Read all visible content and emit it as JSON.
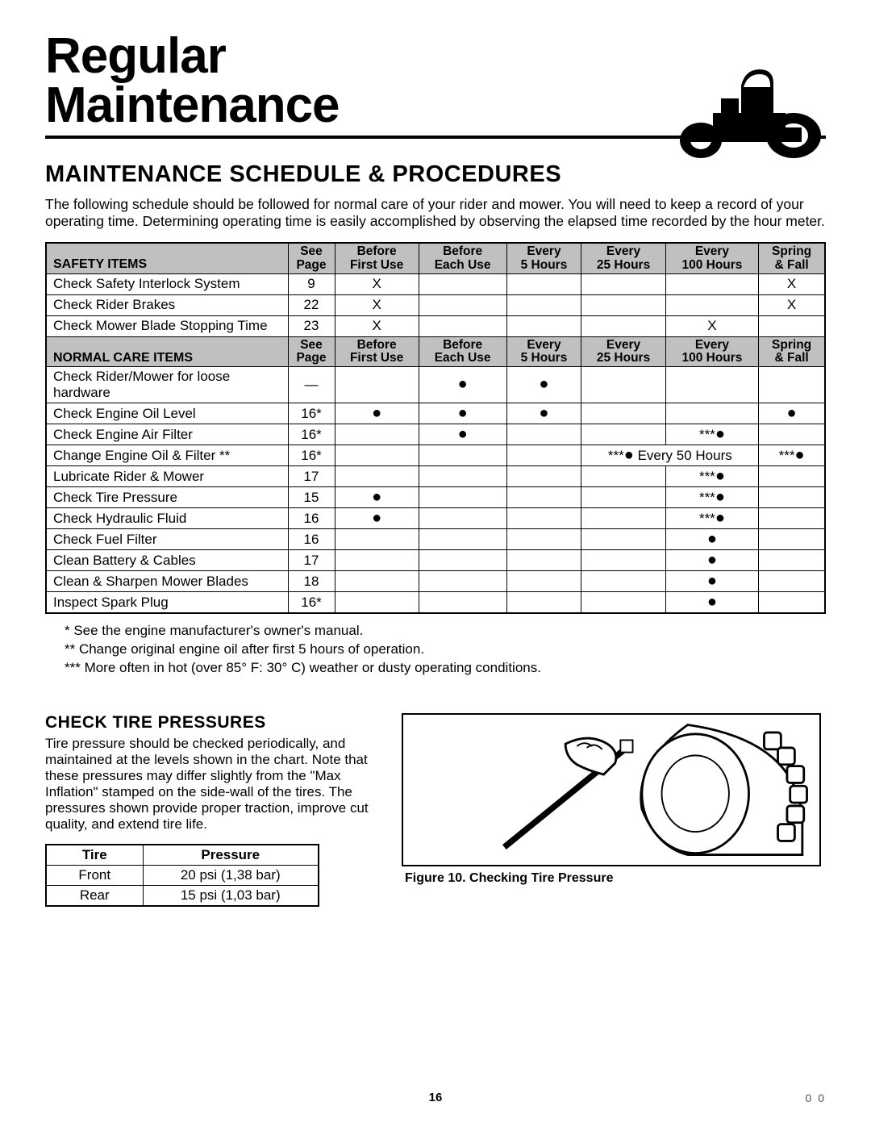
{
  "page_title_line1": "Regular",
  "page_title_line2": "Maintenance",
  "section_heading": "MAINTENANCE SCHEDULE & PROCEDURES",
  "intro_text": "The following schedule should be followed for normal care of your rider and mower. You will need to keep a record of your operating time. Determining operating time is easily accomplished by observing the elapsed time recorded by the hour meter.",
  "table": {
    "header_safety_label": "SAFETY ITEMS",
    "header_normal_label": "NORMAL CARE ITEMS",
    "col_see": "See",
    "col_page": "Page",
    "col_before": "Before",
    "col_first_use": "First Use",
    "col_each_use": "Each Use",
    "col_every": "Every",
    "col_5h": "5 Hours",
    "col_25h": "25 Hours",
    "col_100h": "100 Hours",
    "col_spring": "Spring",
    "col_fall": "& Fall",
    "safety_rows": [
      {
        "item": "Check Safety Interlock System",
        "page": "9",
        "first": "X",
        "each": "",
        "h5": "",
        "h25": "",
        "h100": "",
        "sf": "X"
      },
      {
        "item": "Check Rider Brakes",
        "page": "22",
        "first": "X",
        "each": "",
        "h5": "",
        "h25": "",
        "h100": "",
        "sf": "X"
      },
      {
        "item": "Check Mower Blade Stopping Time",
        "page": "23",
        "first": "X",
        "each": "",
        "h5": "",
        "h25": "",
        "h100": "X",
        "sf": ""
      }
    ],
    "normal_rows": [
      {
        "item": "Check Rider/Mower for loose hardware",
        "page": "—",
        "first": "",
        "each": "●",
        "h5": "●",
        "h25": "",
        "h100": "",
        "sf": ""
      },
      {
        "item": "Check Engine Oil Level",
        "page": "16*",
        "first": "●",
        "each": "●",
        "h5": "●",
        "h25": "",
        "h100": "",
        "sf": "●"
      },
      {
        "item": "Check Engine Air Filter",
        "page": "16*",
        "first": "",
        "each": "●",
        "h5": "",
        "h25": "",
        "h100": "***●",
        "sf": ""
      },
      {
        "item": "Change Engine Oil & Filter **",
        "page": "16*",
        "first": "",
        "each": "",
        "h5": "",
        "merged": "***● Every 50 Hours",
        "sf": "***●"
      },
      {
        "item": "Lubricate Rider & Mower",
        "page": "17",
        "first": "",
        "each": "",
        "h5": "",
        "h25": "",
        "h100": "***●",
        "sf": ""
      },
      {
        "item": "Check Tire Pressure",
        "page": "15",
        "first": "●",
        "each": "",
        "h5": "",
        "h25": "",
        "h100": "***●",
        "sf": ""
      },
      {
        "item": "Check Hydraulic Fluid",
        "page": "16",
        "first": "●",
        "each": "",
        "h5": "",
        "h25": "",
        "h100": "***●",
        "sf": ""
      },
      {
        "item": "Check Fuel Filter",
        "page": "16",
        "first": "",
        "each": "",
        "h5": "",
        "h25": "",
        "h100": "●",
        "sf": ""
      },
      {
        "item": "Clean Battery & Cables",
        "page": "17",
        "first": "",
        "each": "",
        "h5": "",
        "h25": "",
        "h100": "●",
        "sf": ""
      },
      {
        "item": "Clean & Sharpen Mower Blades",
        "page": "18",
        "first": "",
        "each": "",
        "h5": "",
        "h25": "",
        "h100": "●",
        "sf": ""
      },
      {
        "item": "Inspect Spark Plug",
        "page": "16*",
        "first": "",
        "each": "",
        "h5": "",
        "h25": "",
        "h100": "●",
        "sf": ""
      }
    ]
  },
  "footnote1": "* See the engine manufacturer's owner's manual.",
  "footnote2": "** Change original engine oil after first 5 hours of operation.",
  "footnote3": "*** More often in hot (over 85° F: 30° C) weather or dusty operating conditions.",
  "tire_heading": "CHECK TIRE PRESSURES",
  "tire_body": "Tire pressure should be checked periodically, and maintained at the levels shown in the chart. Note that these pressures may differ slightly from the \"Max Inflation\" stamped on the side-wall of the tires. The pressures shown provide proper traction, improve cut quality, and extend tire life.",
  "tire_table": {
    "col_tire": "Tire",
    "col_pressure": "Pressure",
    "rows": [
      {
        "tire": "Front",
        "pressure": "20 psi (1,38 bar)"
      },
      {
        "tire": "Rear",
        "pressure": "15 psi (1,03 bar)"
      }
    ]
  },
  "figure_caption": "Figure 10.  Checking Tire Pressure",
  "page_number": "16",
  "page_code": "0 0"
}
